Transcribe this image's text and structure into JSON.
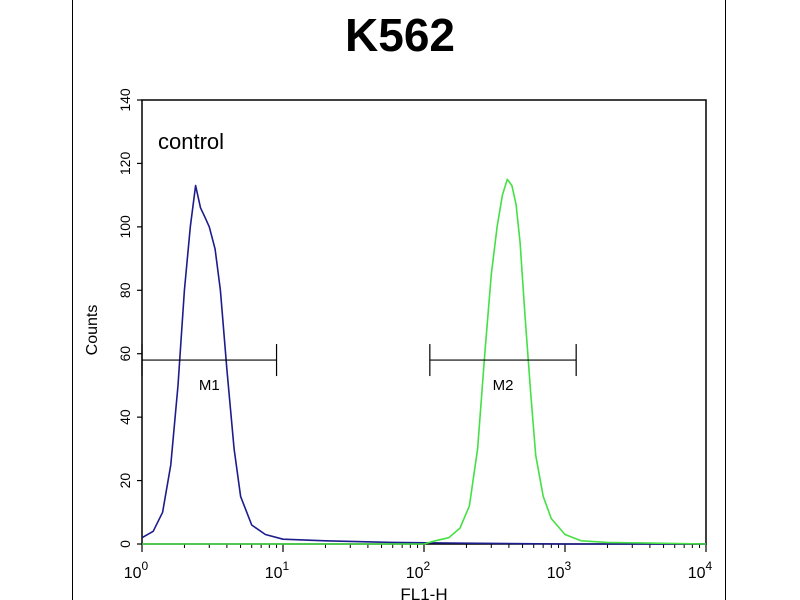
{
  "chart_data": {
    "type": "line",
    "title": "K562",
    "xlabel": "FL1-H",
    "ylabel": "Counts",
    "x_scale": "log",
    "xlim": [
      1,
      10000
    ],
    "ylim": [
      0,
      140
    ],
    "x_ticks": [
      {
        "base": "10",
        "exp": "0",
        "value": 1
      },
      {
        "base": "10",
        "exp": "1",
        "value": 10
      },
      {
        "base": "10",
        "exp": "2",
        "value": 100
      },
      {
        "base": "10",
        "exp": "3",
        "value": 1000
      },
      {
        "base": "10",
        "exp": "4",
        "value": 10000
      }
    ],
    "y_ticks": [
      0,
      20,
      40,
      60,
      80,
      100,
      120,
      140
    ],
    "annotation": "control",
    "colors": {
      "control": "#1c1c8c",
      "sample": "#44e044"
    },
    "series": [
      {
        "color": "#1c1c8c",
        "points": [
          [
            1.0,
            2
          ],
          [
            1.2,
            4
          ],
          [
            1.4,
            10
          ],
          [
            1.6,
            25
          ],
          [
            1.8,
            50
          ],
          [
            2.0,
            80
          ],
          [
            2.2,
            100
          ],
          [
            2.4,
            113
          ],
          [
            2.6,
            106
          ],
          [
            2.8,
            103
          ],
          [
            3.0,
            100
          ],
          [
            3.3,
            93
          ],
          [
            3.6,
            80
          ],
          [
            4.0,
            55
          ],
          [
            4.5,
            30
          ],
          [
            5.0,
            15
          ],
          [
            6.0,
            6
          ],
          [
            7.5,
            3
          ],
          [
            10,
            1.5
          ],
          [
            20,
            1
          ],
          [
            60,
            0.5
          ],
          [
            150,
            0.3
          ],
          [
            1000,
            0
          ],
          [
            10000,
            0
          ]
        ]
      },
      {
        "color": "#44e044",
        "points": [
          [
            1.0,
            0
          ],
          [
            100,
            0
          ],
          [
            120,
            1
          ],
          [
            150,
            2
          ],
          [
            180,
            5
          ],
          [
            210,
            12
          ],
          [
            240,
            30
          ],
          [
            270,
            60
          ],
          [
            300,
            85
          ],
          [
            330,
            100
          ],
          [
            360,
            110
          ],
          [
            390,
            115
          ],
          [
            420,
            113
          ],
          [
            450,
            107
          ],
          [
            480,
            95
          ],
          [
            520,
            72
          ],
          [
            570,
            48
          ],
          [
            620,
            28
          ],
          [
            700,
            15
          ],
          [
            800,
            8
          ],
          [
            1000,
            3
          ],
          [
            1300,
            1
          ],
          [
            2000,
            0.5
          ],
          [
            10000,
            0
          ]
        ]
      }
    ],
    "markers": [
      {
        "label": "M1",
        "x_start": 1.0,
        "x_end": 9.0,
        "y": 58
      },
      {
        "label": "M2",
        "x_start": 110,
        "x_end": 1200,
        "y": 58
      }
    ]
  }
}
